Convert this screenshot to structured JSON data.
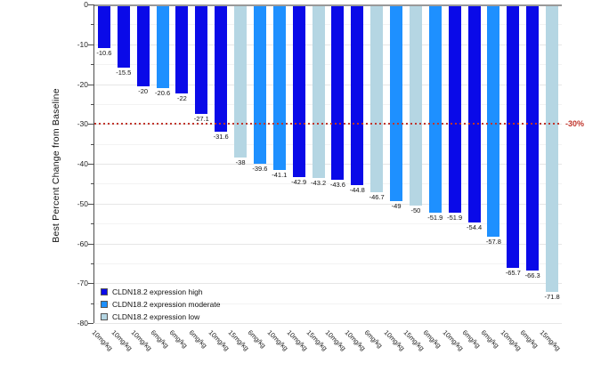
{
  "chart_data": {
    "type": "bar",
    "subtype": "waterfall",
    "title": "",
    "xlabel": "",
    "ylabel": "Best Percent Change from Baseline",
    "ylim": [
      -80,
      0
    ],
    "grid": true,
    "ytick_labels": [
      "0",
      "-10",
      "-20",
      "-30",
      "-40",
      "-50",
      "-60",
      "-70",
      "-80"
    ],
    "ytick_values": [
      0,
      -10,
      -20,
      -30,
      -40,
      -50,
      -60,
      -70,
      -80
    ],
    "categories": [
      "10mg/kg",
      "10mg/kg",
      "10mg/kg",
      "6mg/kg",
      "6mg/kg",
      "6mg/kg",
      "10mg/kg",
      "15mg/kg",
      "6mg/kg",
      "10mg/kg",
      "10mg/kg",
      "15mg/kg",
      "10mg/kg",
      "10mg/kg",
      "6mg/kg",
      "10mg/kg",
      "15mg/kg",
      "6mg/kg",
      "10mg/kg",
      "6mg/kg",
      "6mg/kg",
      "10mg/kg",
      "6mg/kg",
      "15mg/kg"
    ],
    "values": [
      -10.6,
      -15.5,
      -20,
      -20.6,
      -22,
      -27.1,
      -31.6,
      -38,
      -39.6,
      -41.1,
      -42.9,
      -43.2,
      -43.6,
      -44.8,
      -46.7,
      -49,
      -50,
      -51.9,
      -51.9,
      -54.4,
      -57.8,
      -65.7,
      -66.3,
      -71.8
    ],
    "value_labels": [
      "-10.6",
      "-15.5",
      "-20",
      "-20.6",
      "-22",
      "-27.1",
      "-31.6",
      "-38",
      "-39.6",
      "-41.1",
      "-42.9",
      "-43.2",
      "-43.6",
      "-44.8",
      "-46.7",
      "-49",
      "-50",
      "-51.9",
      "-51.9",
      "-54.4",
      "-57.8",
      "-65.7",
      "-66.3",
      "-71.8"
    ],
    "groups": [
      "high",
      "high",
      "high",
      "moderate",
      "high",
      "high",
      "high",
      "low",
      "moderate",
      "moderate",
      "high",
      "low",
      "high",
      "high",
      "low",
      "moderate",
      "low",
      "moderate",
      "high",
      "high",
      "moderate",
      "high",
      "high",
      "low"
    ],
    "legend_position": "lower-left",
    "legend": [
      {
        "key": "high",
        "label": "CLDN18.2 expression high",
        "color": "#0a0ae8"
      },
      {
        "key": "moderate",
        "label": "CLDN18.2 expression moderate",
        "color": "#1e90ff"
      },
      {
        "key": "low",
        "label": "CLDN18.2 expression low",
        "color": "#b5d6e3"
      }
    ],
    "reference_line": {
      "y": -30,
      "label": "-30%",
      "color": "#c0352c"
    }
  }
}
